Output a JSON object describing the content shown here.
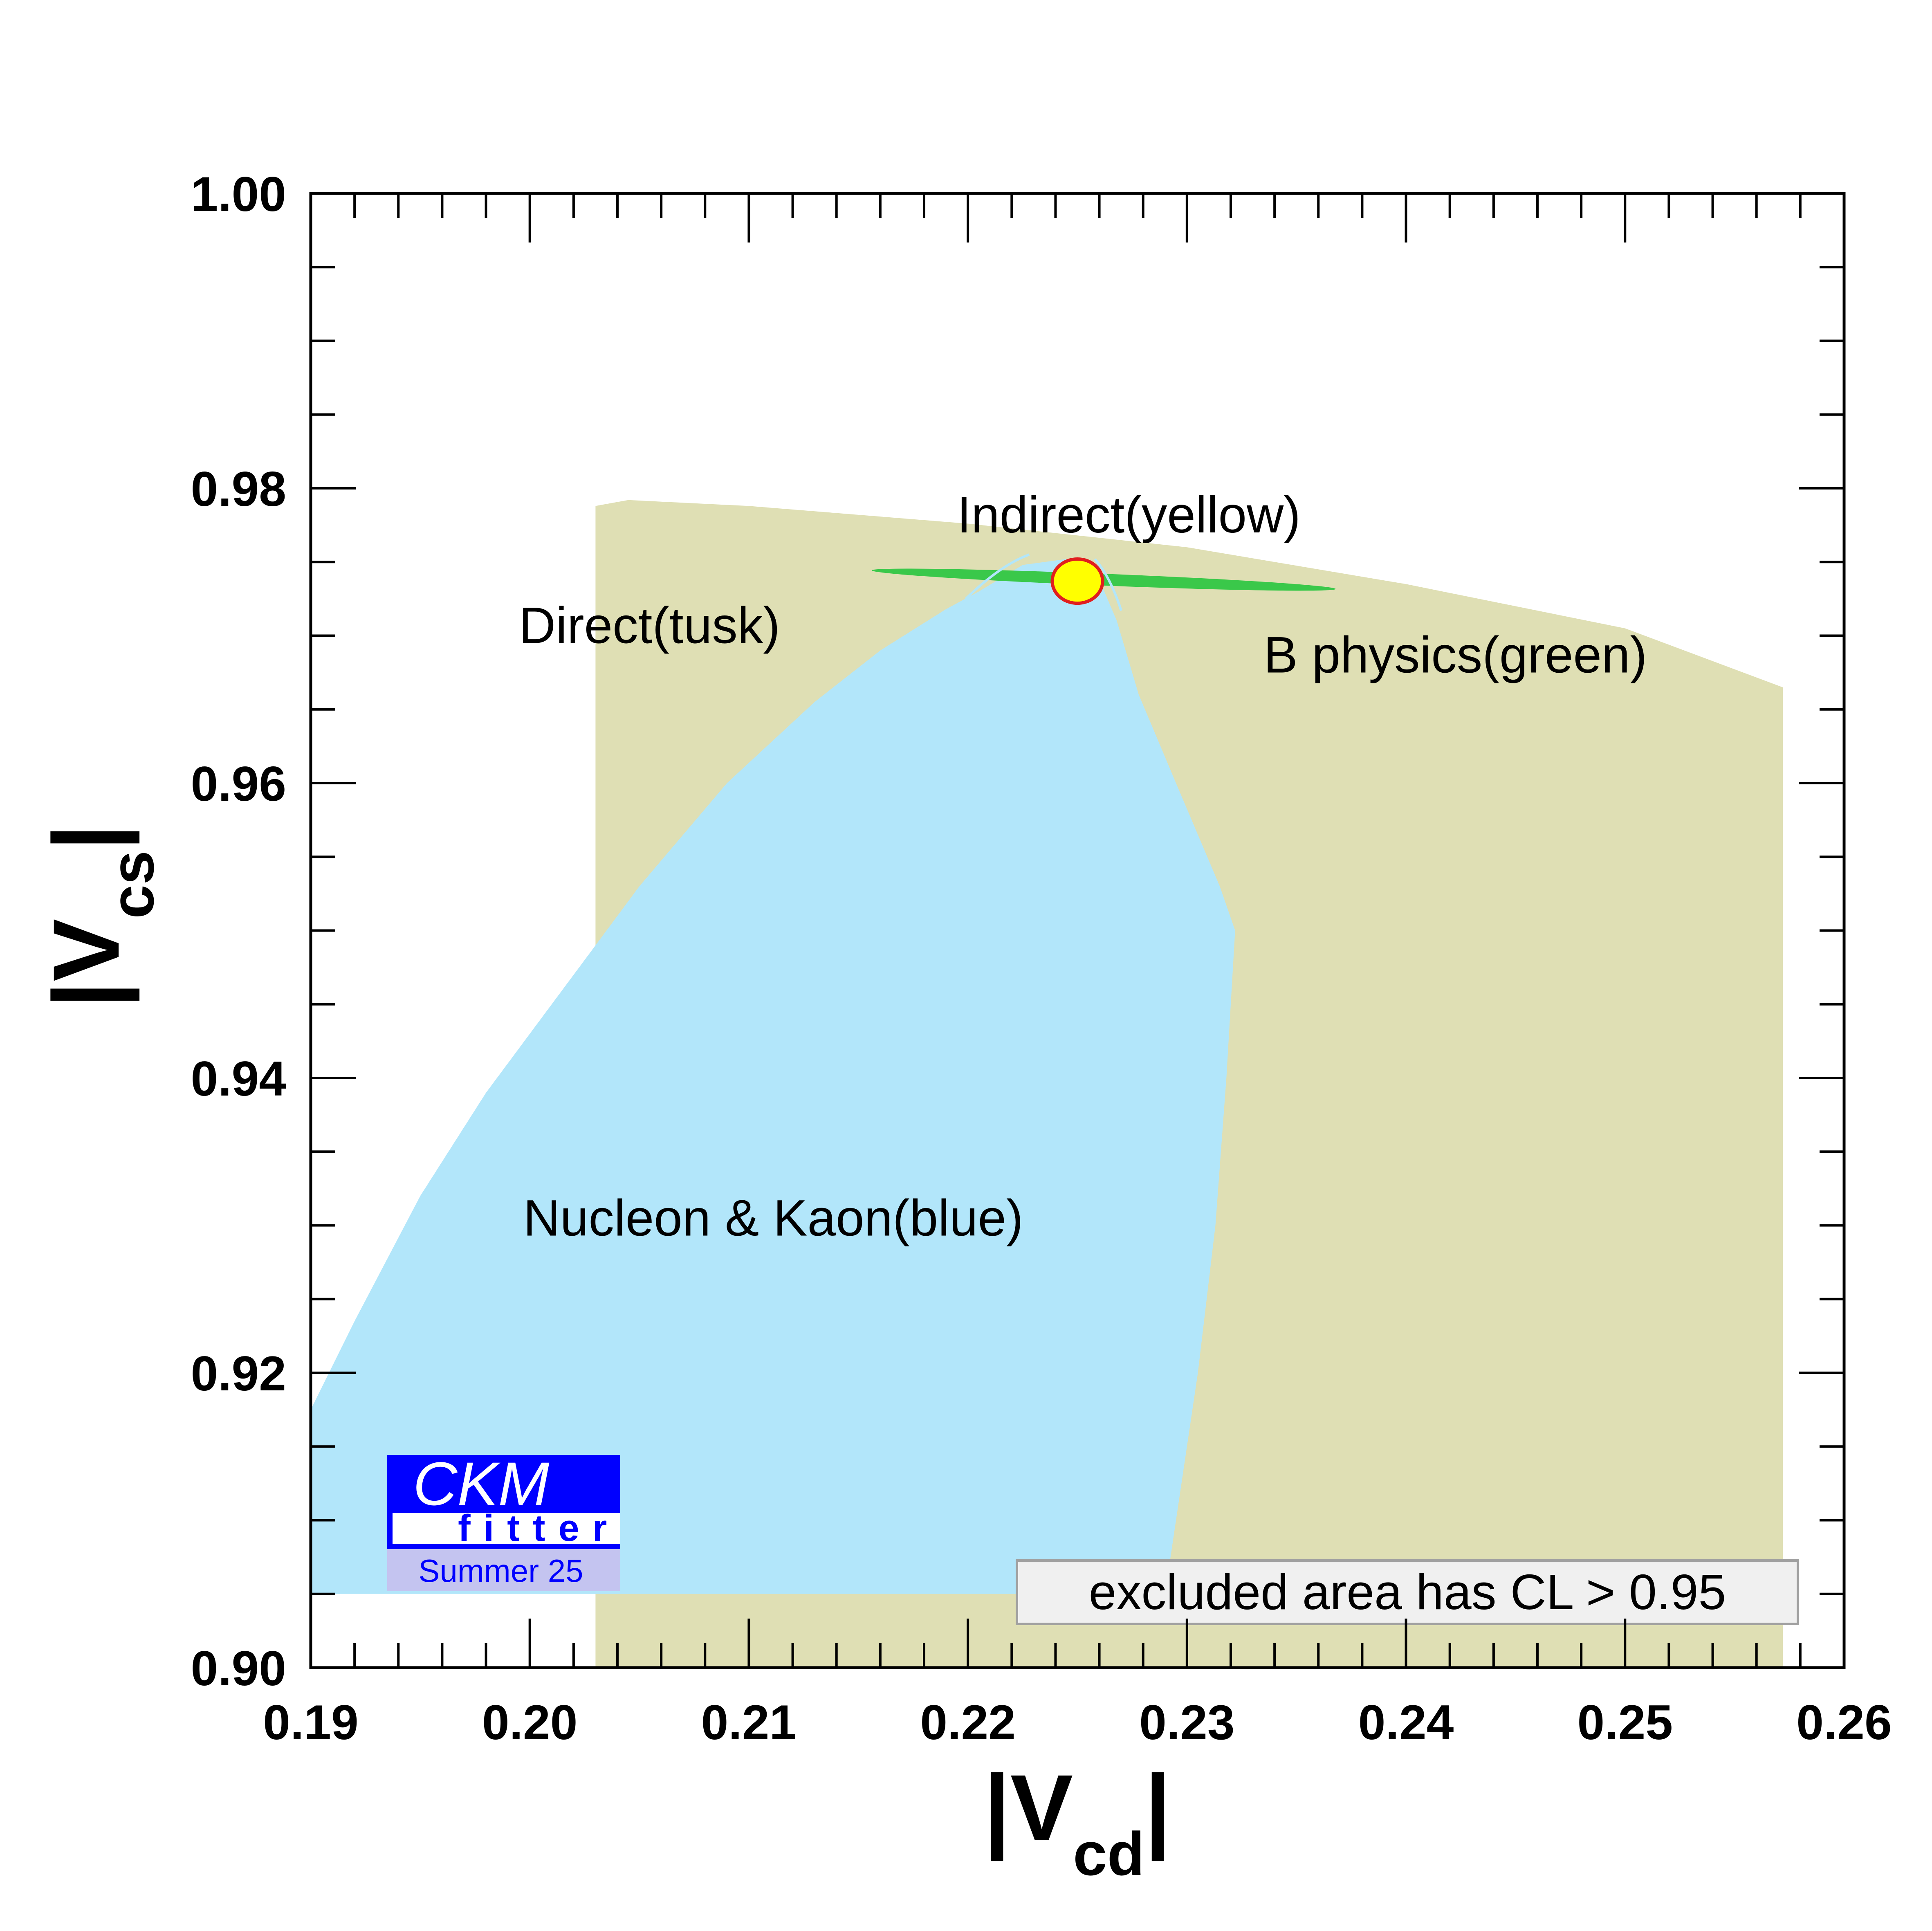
{
  "chart_data": {
    "type": "area",
    "xlabel": "|V",
    "xlabel_sub": "cd",
    "xlabel_close": "|",
    "ylabel": "|V",
    "ylabel_sub": "cs",
    "ylabel_close": "|",
    "xlim": [
      0.19,
      0.26
    ],
    "ylim": [
      0.9,
      1.0
    ],
    "x_ticks": [
      "0.19",
      "0.20",
      "0.21",
      "0.22",
      "0.23",
      "0.24",
      "0.25",
      "0.26"
    ],
    "y_ticks": [
      "0.90",
      "0.92",
      "0.94",
      "0.96",
      "0.98",
      "1.00"
    ],
    "grid": false,
    "regions": [
      {
        "name": "Direct(tusk)",
        "color": "#dfdfb4",
        "polygon": [
          [
            0.203,
            0.9
          ],
          [
            0.203,
            0.9788
          ],
          [
            0.2045,
            0.9792
          ],
          [
            0.21,
            0.9788
          ],
          [
            0.22,
            0.9776
          ],
          [
            0.23,
            0.976
          ],
          [
            0.24,
            0.9735
          ],
          [
            0.25,
            0.9705
          ],
          [
            0.2572,
            0.9665
          ],
          [
            0.2572,
            0.9
          ]
        ]
      },
      {
        "name": "Nucleon & Kaon(blue)",
        "color": "#b2e6fa",
        "polygon": [
          [
            0.19,
            0.905
          ],
          [
            0.229,
            0.905
          ],
          [
            0.2295,
            0.91
          ],
          [
            0.2305,
            0.92
          ],
          [
            0.2313,
            0.93
          ],
          [
            0.2318,
            0.94
          ],
          [
            0.2322,
            0.95
          ],
          [
            0.2315,
            0.953
          ],
          [
            0.2295,
            0.96
          ],
          [
            0.2278,
            0.966
          ],
          [
            0.2268,
            0.971
          ],
          [
            0.2258,
            0.9745
          ],
          [
            0.2245,
            0.9752
          ],
          [
            0.2225,
            0.9748
          ],
          [
            0.2205,
            0.973
          ],
          [
            0.219,
            0.9718
          ],
          [
            0.216,
            0.969
          ],
          [
            0.213,
            0.9655
          ],
          [
            0.209,
            0.96
          ],
          [
            0.205,
            0.953
          ],
          [
            0.202,
            0.947
          ],
          [
            0.198,
            0.939
          ],
          [
            0.195,
            0.932
          ],
          [
            0.192,
            0.9235
          ],
          [
            0.19,
            0.9175
          ]
        ]
      },
      {
        "name": "B physics(green)",
        "color": "#3ac84a",
        "ellipse": {
          "center": [
            0.2262,
            0.9738
          ],
          "half_length": 0.0106,
          "half_width": 0.0004,
          "angle_deg": -2.3
        }
      },
      {
        "name": "Indirect(yellow)",
        "color": "#ffff00",
        "edge_color": "#e11e1e",
        "ellipse": {
          "center": [
            0.225,
            0.9737
          ],
          "rx": 0.00115,
          "ry": 0.0015
        }
      }
    ],
    "annotations": [
      {
        "text": "Indirect(yellow)",
        "x": 0.2195,
        "y": 0.977
      },
      {
        "text": "Direct(tusk)",
        "x": 0.1995,
        "y": 0.9695
      },
      {
        "text": "B physics(green)",
        "x": 0.2335,
        "y": 0.9675
      },
      {
        "text": "Nucleon & Kaon(blue)",
        "x": 0.1997,
        "y": 0.9293
      }
    ],
    "cl_note": "excluded area has CL > 0.95",
    "logo": {
      "main": "CKM",
      "sub": "fitter",
      "season": "Summer 25"
    }
  }
}
